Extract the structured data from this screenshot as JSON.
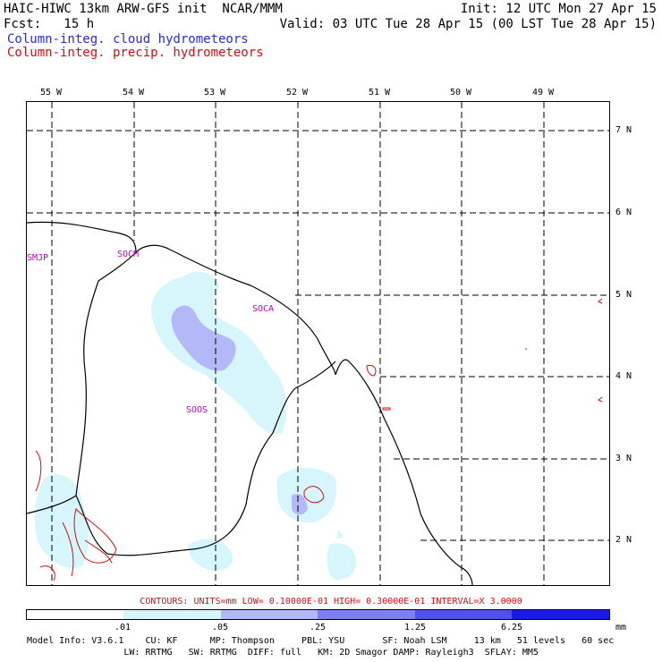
{
  "header": {
    "line1": "HAIC-HIWC 13km ARW-GFS init  NCAR/MMM",
    "line2": "Fcst:   15 h",
    "init": "Init: 12 UTC Mon 27 Apr 15",
    "valid": "Valid: 03 UTC Tue 28 Apr 15 (00 LST Tue 28 Apr 15)",
    "cloud_label": "Column-integ. cloud hydrometeors",
    "precip_label": "Column-integ. precip. hydrometeors"
  },
  "map": {
    "lon_labels": [
      "55 W",
      "54 W",
      "53 W",
      "52 W",
      "51 W",
      "50 W",
      "49 W"
    ],
    "lat_labels": [
      "7 N",
      "6 N",
      "5 N",
      "4 N",
      "3 N",
      "2 N"
    ],
    "stations": [
      "SMJP",
      "SOCM",
      "SOCA",
      "SOOS"
    ],
    "colors": {
      "coast": "#000000",
      "grid": "#000000",
      "cloud": "#2a2ad6",
      "precip": "#d01010",
      "station": "#c000c0"
    }
  },
  "legend": {
    "contours": "CONTOURS:  UNITS=mm  LOW= 0.10000E-01  HIGH= 0.30000E-01  INTERVAL=X  3.0000",
    "ticks": [
      ".01",
      ".05",
      ".25",
      "1.25",
      "6.25"
    ],
    "units": "mm",
    "colors": [
      "#ffffff",
      "#d6f6fb",
      "#b3b8f6",
      "#7e80f0",
      "#5050ec",
      "#1a1ae6"
    ]
  },
  "footer": {
    "line1": "Model Info: V3.6.1    CU: KF      MP: Thompson     PBL: YSU       SF: Noah LSM     13 km   51 levels   60 sec",
    "line2": "                  LW: RRTMG   SW: RRTMG  DIFF: full   KM: 2D Smagor DAMP: Rayleigh3  SFLAY: MM5"
  }
}
